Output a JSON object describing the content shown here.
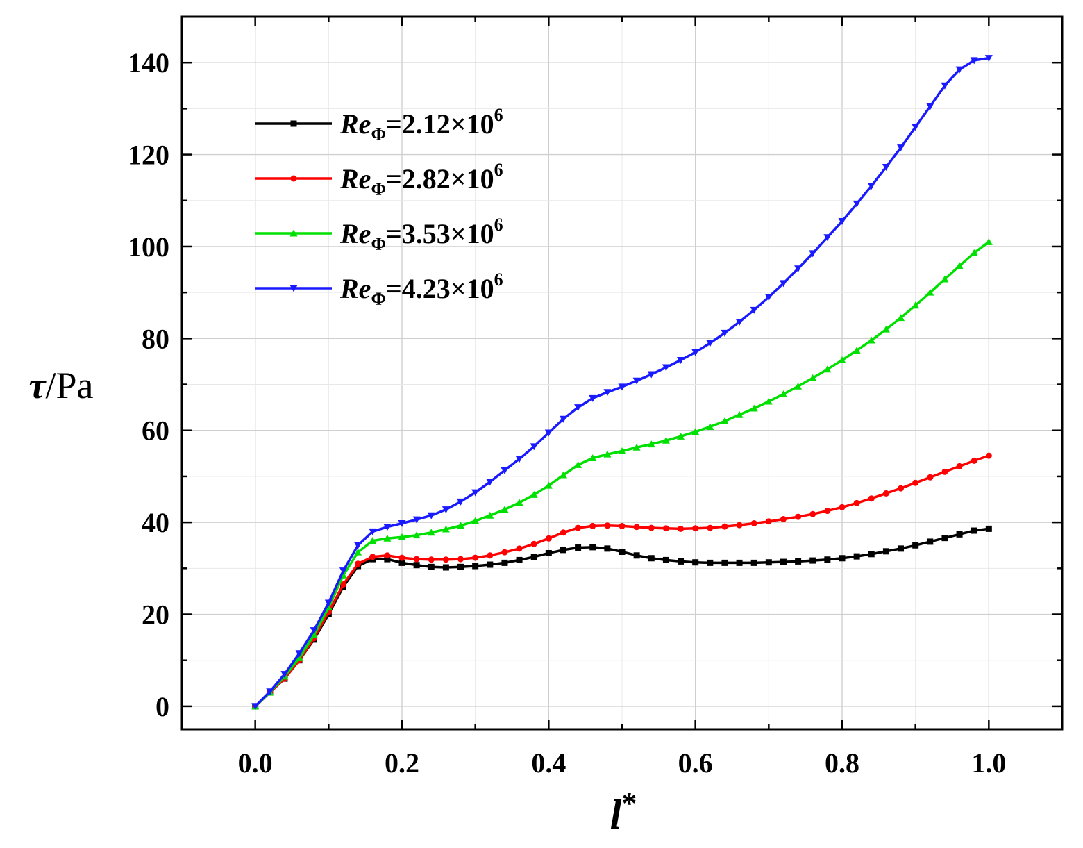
{
  "chart_data": {
    "type": "line",
    "xlabel": "l*",
    "ylabel": "τ/Pa",
    "xlim": [
      -0.1,
      1.1
    ],
    "ylim": [
      -5,
      150
    ],
    "x_ticks": [
      "0.0",
      "0.2",
      "0.4",
      "0.6",
      "0.8",
      "1.0"
    ],
    "y_ticks": [
      "0",
      "20",
      "40",
      "60",
      "80",
      "100",
      "120",
      "140"
    ],
    "grid": true,
    "legend_position": "top-left",
    "x": [
      0.0,
      0.02,
      0.04,
      0.06,
      0.08,
      0.1,
      0.12,
      0.14,
      0.16,
      0.18,
      0.2,
      0.22,
      0.24,
      0.26,
      0.28,
      0.3,
      0.32,
      0.34,
      0.36,
      0.38,
      0.4,
      0.42,
      0.44,
      0.46,
      0.48,
      0.5,
      0.52,
      0.54,
      0.56,
      0.58,
      0.6,
      0.62,
      0.64,
      0.66,
      0.68,
      0.7,
      0.72,
      0.74,
      0.76,
      0.78,
      0.8,
      0.82,
      0.84,
      0.86,
      0.88,
      0.9,
      0.92,
      0.94,
      0.96,
      0.98,
      1.0
    ],
    "series": [
      {
        "name": "ReΦ=2.12×10⁶",
        "label_main": "Re",
        "label_sub": "Φ",
        "label_value": "=2.12×10",
        "label_exp": "6",
        "color": "#000000",
        "marker": "square",
        "values": [
          0,
          3,
          6,
          10,
          14.5,
          20,
          26,
          30.5,
          32,
          32,
          31.2,
          30.7,
          30.3,
          30.2,
          30.3,
          30.5,
          30.8,
          31.2,
          31.8,
          32.5,
          33.3,
          34,
          34.5,
          34.6,
          34.3,
          33.6,
          32.8,
          32.2,
          31.8,
          31.5,
          31.3,
          31.2,
          31.2,
          31.2,
          31.2,
          31.3,
          31.4,
          31.5,
          31.7,
          31.9,
          32.2,
          32.6,
          33.1,
          33.7,
          34.3,
          35,
          35.8,
          36.6,
          37.4,
          38.2,
          38.6
        ]
      },
      {
        "name": "ReΦ=2.82×10⁶",
        "label_main": "Re",
        "label_sub": "Φ",
        "label_value": "=2.82×10",
        "label_exp": "6",
        "color": "#ff0000",
        "marker": "circle",
        "values": [
          0,
          3,
          6,
          10,
          14.8,
          20.5,
          26.5,
          31,
          32.5,
          32.8,
          32.3,
          32,
          31.9,
          31.9,
          32,
          32.3,
          32.8,
          33.5,
          34.3,
          35.3,
          36.5,
          37.8,
          38.8,
          39.2,
          39.3,
          39.2,
          39,
          38.8,
          38.7,
          38.6,
          38.7,
          38.8,
          39.1,
          39.4,
          39.8,
          40.2,
          40.7,
          41.2,
          41.8,
          42.5,
          43.3,
          44.2,
          45.2,
          46.3,
          47.4,
          48.6,
          49.8,
          51,
          52.2,
          53.4,
          54.5
        ]
      },
      {
        "name": "ReΦ=3.53×10⁶",
        "label_main": "Re",
        "label_sub": "Φ",
        "label_value": "=3.53×10",
        "label_exp": "6",
        "color": "#00e000",
        "marker": "triangle-up",
        "values": [
          0,
          3,
          6.5,
          10.5,
          15.5,
          21.5,
          28.5,
          33.5,
          36,
          36.5,
          36.8,
          37.2,
          37.8,
          38.5,
          39.3,
          40.3,
          41.5,
          42.8,
          44.3,
          46,
          48,
          50.3,
          52.5,
          54,
          54.8,
          55.5,
          56.3,
          57,
          57.8,
          58.7,
          59.7,
          60.8,
          62,
          63.4,
          64.8,
          66.3,
          67.9,
          69.6,
          71.4,
          73.3,
          75.3,
          77.4,
          79.6,
          82,
          84.5,
          87.2,
          90,
          92.9,
          95.8,
          98.6,
          101
        ]
      },
      {
        "name": "ReΦ=4.23×10⁶",
        "label_main": "Re",
        "label_sub": "Φ",
        "label_value": "=4.23×10",
        "label_exp": "6",
        "color": "#1a1aff",
        "marker": "triangle-down",
        "values": [
          0,
          3.2,
          7,
          11.5,
          16.5,
          22.5,
          29.5,
          35,
          38,
          39,
          39.8,
          40.6,
          41.5,
          42.8,
          44.5,
          46.5,
          48.8,
          51.3,
          53.8,
          56.5,
          59.5,
          62.5,
          65,
          67,
          68.3,
          69.5,
          70.8,
          72.2,
          73.7,
          75.3,
          77,
          79,
          81.2,
          83.6,
          86.2,
          89,
          92,
          95.2,
          98.5,
          102,
          105.5,
          109.3,
          113.2,
          117.3,
          121.5,
          126,
          130.5,
          135,
          138.5,
          140.5,
          141
        ]
      }
    ]
  }
}
